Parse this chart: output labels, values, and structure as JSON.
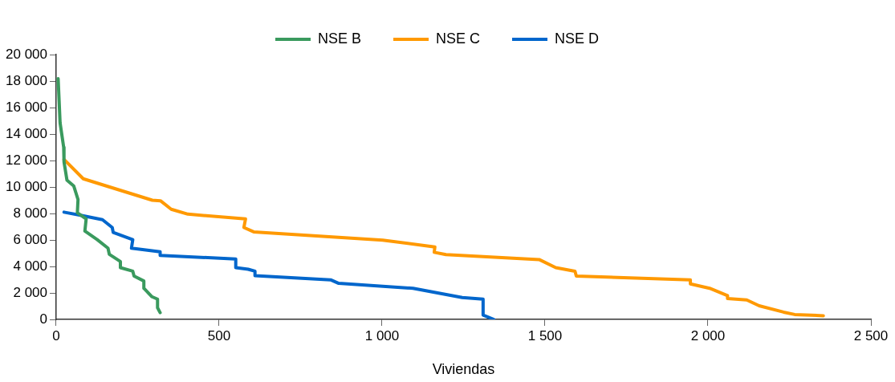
{
  "chart_data": {
    "type": "line",
    "xlabel": "Viviendas",
    "xlim": [
      0,
      2500
    ],
    "xticks": [
      0,
      500,
      {
        "value": 1000,
        "label": "1 000"
      },
      {
        "value": 1500,
        "label": "1 500"
      },
      {
        "value": 2000,
        "label": "2 000"
      },
      {
        "value": 2500,
        "label": "2 500"
      }
    ],
    "ylim": [
      0,
      20000
    ],
    "yticks": [
      0,
      {
        "value": 2000,
        "label": "2 000"
      },
      {
        "value": 4000,
        "label": "4 000"
      },
      {
        "value": 6000,
        "label": "6 000"
      },
      {
        "value": 8000,
        "label": "8 000"
      },
      {
        "value": 10000,
        "label": "10 000"
      },
      {
        "value": 12000,
        "label": "12 000"
      },
      {
        "value": 14000,
        "label": "14 000"
      },
      {
        "value": 16000,
        "label": "16 000"
      },
      {
        "value": 18000,
        "label": "18 000"
      },
      {
        "value": 20000,
        "label": "20 000"
      }
    ],
    "grid": false,
    "legend": "top",
    "marker": "none",
    "line_style": "solid",
    "series": [
      {
        "name": "NSE B",
        "color": "#3a9a5e",
        "x": [
          6,
          12,
          23,
          24,
          33,
          54,
          67,
          65,
          92,
          88,
          126,
          159,
          163,
          197,
          197,
          235,
          239,
          269,
          269,
          294,
          311,
          311,
          319
        ],
        "values": [
          18180,
          14840,
          13000,
          11900,
          10520,
          10070,
          9050,
          8050,
          7590,
          6670,
          6020,
          5380,
          4920,
          4370,
          3910,
          3640,
          3270,
          2900,
          2350,
          1710,
          1530,
          880,
          510
        ]
      },
      {
        "name": "NSE C",
        "color": "#ff9900",
        "x": [
          24,
          83,
          168,
          295,
          320,
          353,
          404,
          581,
          576,
          606,
          1002,
          1162,
          1160,
          1196,
          1482,
          1533,
          1592,
          1596,
          1946,
          1946,
          2005,
          2060,
          2060,
          2119,
          2157,
          2232,
          2266,
          2354
        ],
        "values": [
          12080,
          10620,
          9970,
          9000,
          8960,
          8320,
          7950,
          7590,
          6940,
          6610,
          5990,
          5470,
          5070,
          4890,
          4520,
          3910,
          3640,
          3270,
          2990,
          2680,
          2350,
          1800,
          1580,
          1470,
          1030,
          550,
          370,
          280
        ]
      },
      {
        "name": "NSE D",
        "color": "#0066cc",
        "x": [
          24,
          75,
          142,
          172,
          175,
          235,
          231,
          319,
          319,
          551,
          551,
          589,
          610,
          610,
          842,
          867,
          1095,
          1246,
          1310,
          1310,
          1343
        ],
        "values": [
          8100,
          7860,
          7530,
          6940,
          6570,
          6020,
          5380,
          5110,
          4840,
          4560,
          3910,
          3790,
          3640,
          3310,
          2990,
          2720,
          2350,
          1650,
          1530,
          330,
          0
        ]
      }
    ]
  }
}
